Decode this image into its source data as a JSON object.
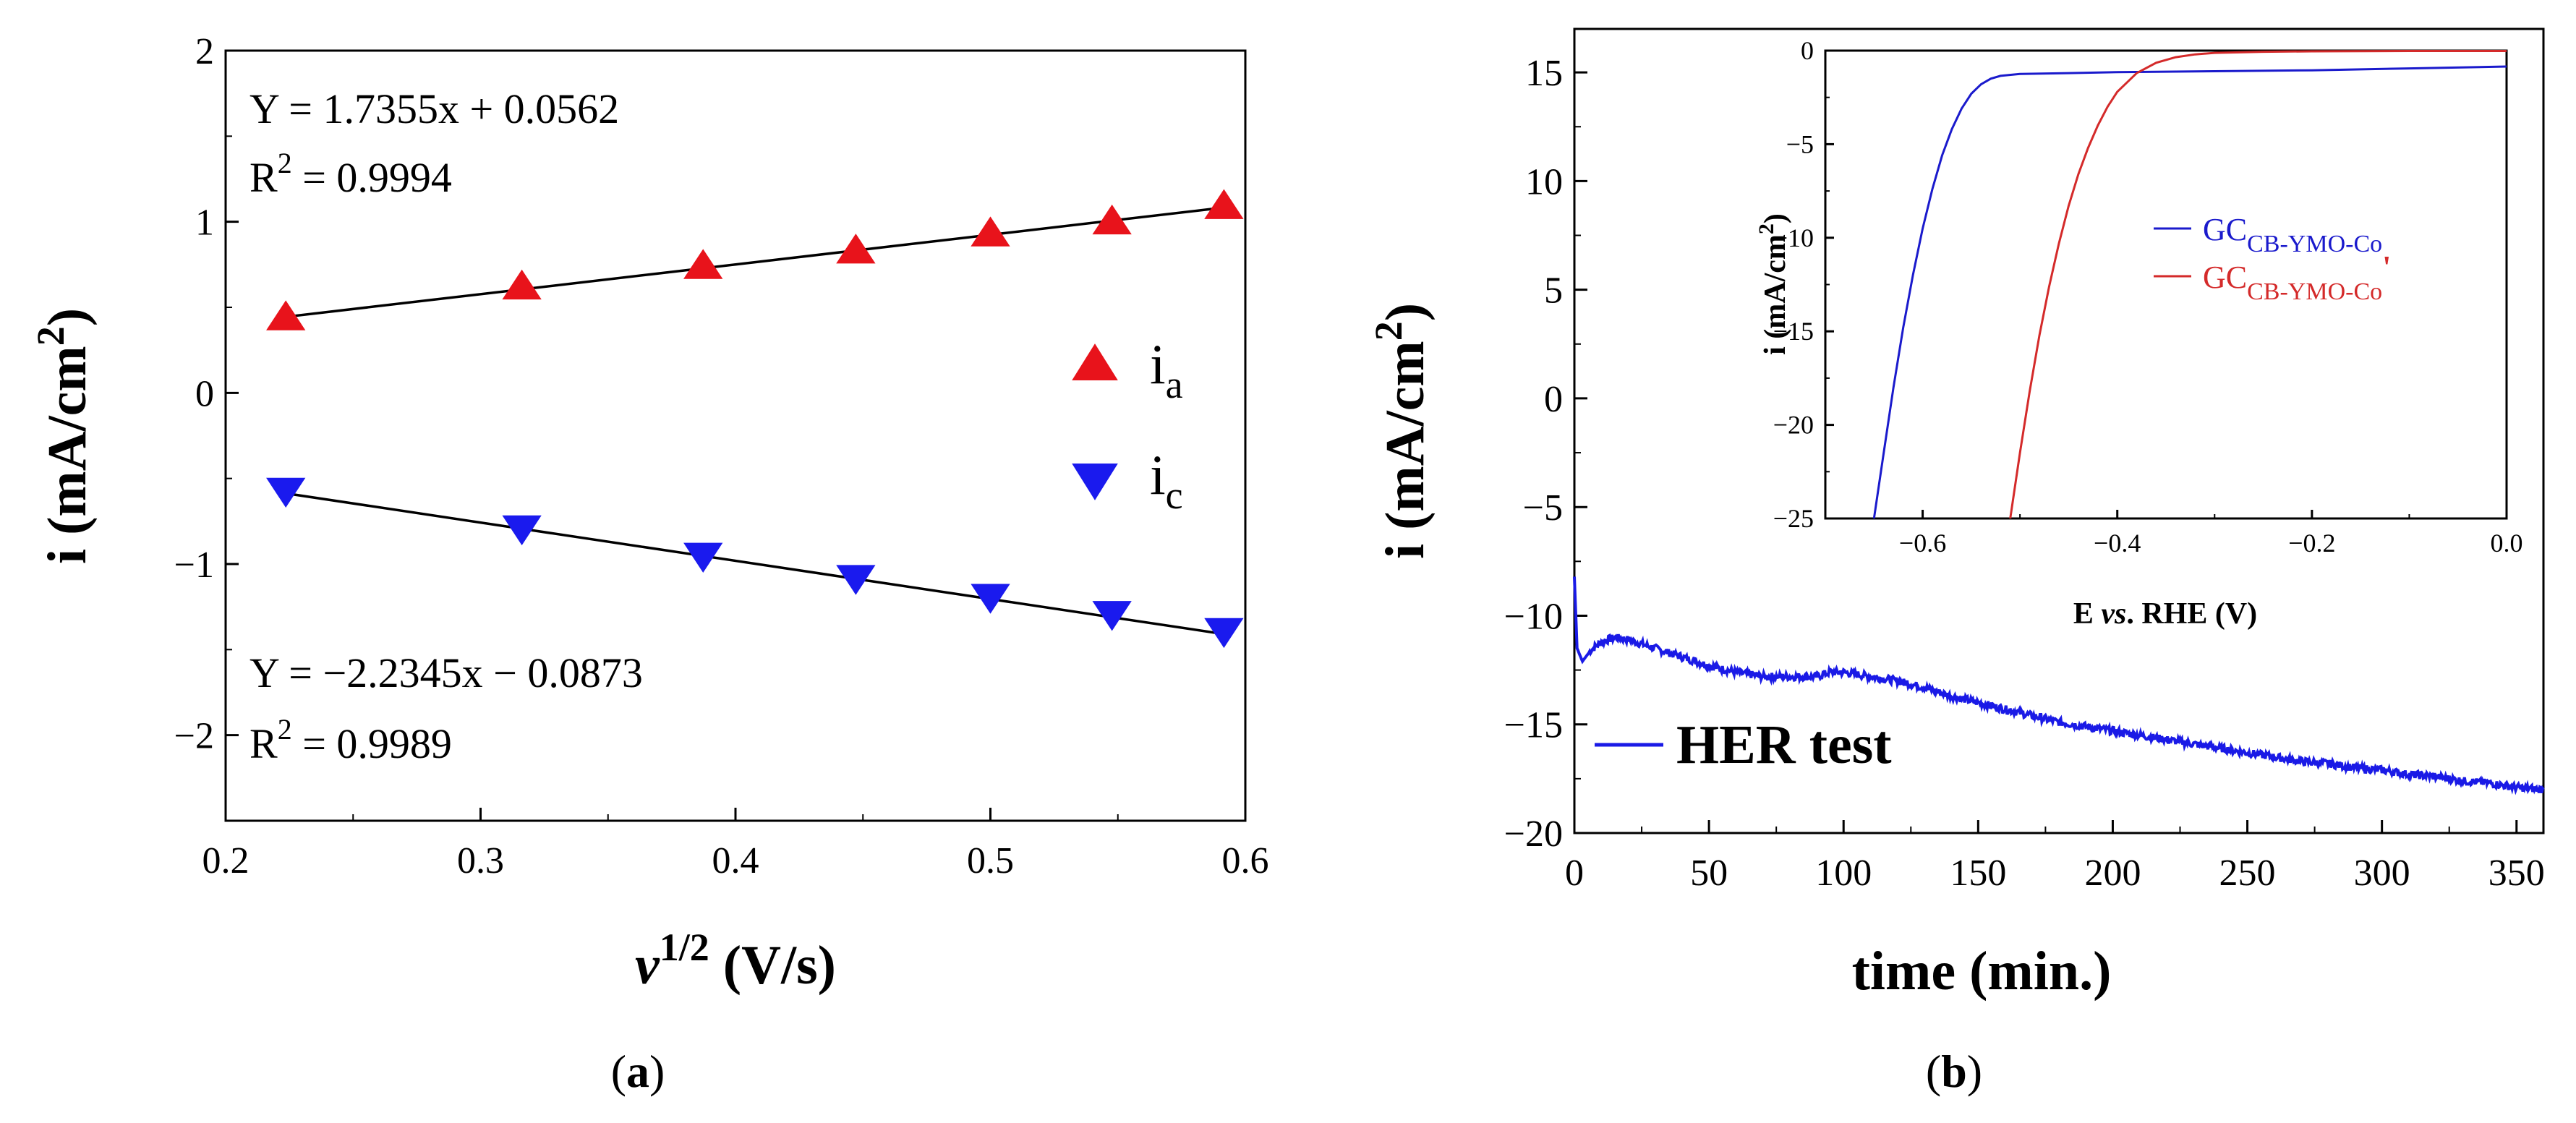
{
  "chart_data": [
    {
      "type": "scatter",
      "panel_label": "a",
      "xlabel": "v",
      "xlabel_sup": "1/2",
      "xlabel_unit": " (V/s)",
      "ylabel": "i (mA/cm",
      "ylabel_sup": "2",
      "ylabel_end": ")",
      "xlim": [
        0.2,
        0.6
      ],
      "ylim": [
        -2.5,
        2
      ],
      "xticks": [
        "0.2",
        "0.3",
        "0.4",
        "0.5",
        "0.6"
      ],
      "yticks": [
        "2",
        "1",
        "0",
        "−1",
        "−2"
      ],
      "x": [
        0.2236,
        0.3162,
        0.3873,
        0.4472,
        0.5,
        0.5477,
        0.5916
      ],
      "series": [
        {
          "name": "i",
          "sub": "a",
          "color": "#e8131b",
          "marker": "triangle-up",
          "values": [
            0.44,
            0.62,
            0.74,
            0.83,
            0.93,
            1.0,
            1.09
          ],
          "fit": {
            "slope": 1.7355,
            "intercept": 0.0562,
            "eq": "Y = 1.7355x + 0.0562",
            "r2_pre": "R",
            "r2_sup": "2",
            "r2_post": " = 0.9994"
          }
        },
        {
          "name": "i",
          "sub": "c",
          "color": "#1a1aee",
          "marker": "triangle-down",
          "values": [
            -0.57,
            -0.79,
            -0.95,
            -1.08,
            -1.19,
            -1.29,
            -1.39
          ],
          "fit": {
            "slope": -2.2345,
            "intercept": -0.0873,
            "eq": "Y = −2.2345x − 0.0873",
            "r2_pre": "R",
            "r2_sup": "2",
            "r2_post": " = 0.9989"
          }
        }
      ]
    },
    {
      "type": "line",
      "panel_label": "b",
      "xlabel": "time (min.)",
      "ylabel": "i (mA/cm",
      "ylabel_sup": "2",
      "ylabel_end": ")",
      "xlim": [
        0,
        360
      ],
      "ylim": [
        -20,
        17
      ],
      "xticks": [
        "0",
        "50",
        "100",
        "150",
        "200",
        "250",
        "300",
        "350"
      ],
      "yticks": [
        "15",
        "10",
        "5",
        "0",
        "−5",
        "−10",
        "−15",
        "−20"
      ],
      "series": [
        {
          "name": "HER test",
          "color": "#1a1ae6",
          "x": [
            0,
            1,
            3,
            6,
            10,
            15,
            20,
            30,
            40,
            50,
            60,
            70,
            80,
            90,
            95,
            100,
            110,
            120,
            130,
            140,
            150,
            160,
            170,
            180,
            190,
            200,
            210,
            220,
            230,
            240,
            250,
            260,
            270,
            280,
            290,
            300,
            310,
            320,
            330,
            340,
            350,
            360
          ],
          "values": [
            -8.2,
            -11.5,
            -12.1,
            -11.6,
            -11.2,
            -11.0,
            -11.1,
            -11.5,
            -11.9,
            -12.3,
            -12.6,
            -12.8,
            -12.8,
            -12.8,
            -12.6,
            -12.6,
            -12.8,
            -13.0,
            -13.3,
            -13.7,
            -14.0,
            -14.3,
            -14.6,
            -14.9,
            -15.1,
            -15.3,
            -15.5,
            -15.7,
            -15.9,
            -16.1,
            -16.3,
            -16.5,
            -16.7,
            -16.8,
            -17.0,
            -17.1,
            -17.3,
            -17.4,
            -17.6,
            -17.7,
            -17.9,
            -18.0
          ]
        }
      ],
      "inset": {
        "type": "line",
        "xlabel_pre": "E ",
        "xlabel_ital": "vs",
        "xlabel_post": ". RHE (V)",
        "ylabel": "i (mA/cm",
        "ylabel_sup": "2",
        "ylabel_end": ")",
        "xlim": [
          -0.7,
          0.0
        ],
        "ylim": [
          -25,
          0
        ],
        "xticks": [
          "−0.6",
          "−0.4",
          "−0.2",
          "0.0"
        ],
        "yticks": [
          "0",
          "−5",
          "−10",
          "−15",
          "−20",
          "−25"
        ],
        "series": [
          {
            "name": "GC",
            "sub": "CB-YMO-Co",
            "suffix": "",
            "color": "#1a1acc",
            "x": [
              -0.65,
              -0.64,
              -0.63,
              -0.62,
              -0.61,
              -0.6,
              -0.59,
              -0.58,
              -0.57,
              -0.56,
              -0.55,
              -0.54,
              -0.53,
              -0.52,
              -0.5,
              -0.45,
              -0.4,
              -0.3,
              -0.2,
              -0.1,
              0.0
            ],
            "values": [
              -25,
              -21.5,
              -18.0,
              -14.8,
              -12.0,
              -9.5,
              -7.4,
              -5.6,
              -4.2,
              -3.1,
              -2.3,
              -1.8,
              -1.5,
              -1.35,
              -1.25,
              -1.2,
              -1.15,
              -1.1,
              -1.05,
              -0.95,
              -0.85
            ]
          },
          {
            "name": "GC",
            "sub": "CB-YMO-Co",
            "suffix": "'",
            "color": "#d42a2a",
            "x": [
              -0.51,
              -0.5,
              -0.49,
              -0.48,
              -0.47,
              -0.46,
              -0.45,
              -0.44,
              -0.43,
              -0.42,
              -0.41,
              -0.4,
              -0.38,
              -0.36,
              -0.34,
              -0.32,
              -0.3,
              -0.25,
              -0.2,
              -0.1,
              0.0
            ],
            "values": [
              -25,
              -21.5,
              -18.2,
              -15.2,
              -12.6,
              -10.3,
              -8.3,
              -6.6,
              -5.2,
              -4.0,
              -3.0,
              -2.2,
              -1.2,
              -0.65,
              -0.35,
              -0.2,
              -0.12,
              -0.06,
              -0.04,
              -0.02,
              -0.02
            ]
          }
        ]
      }
    }
  ]
}
